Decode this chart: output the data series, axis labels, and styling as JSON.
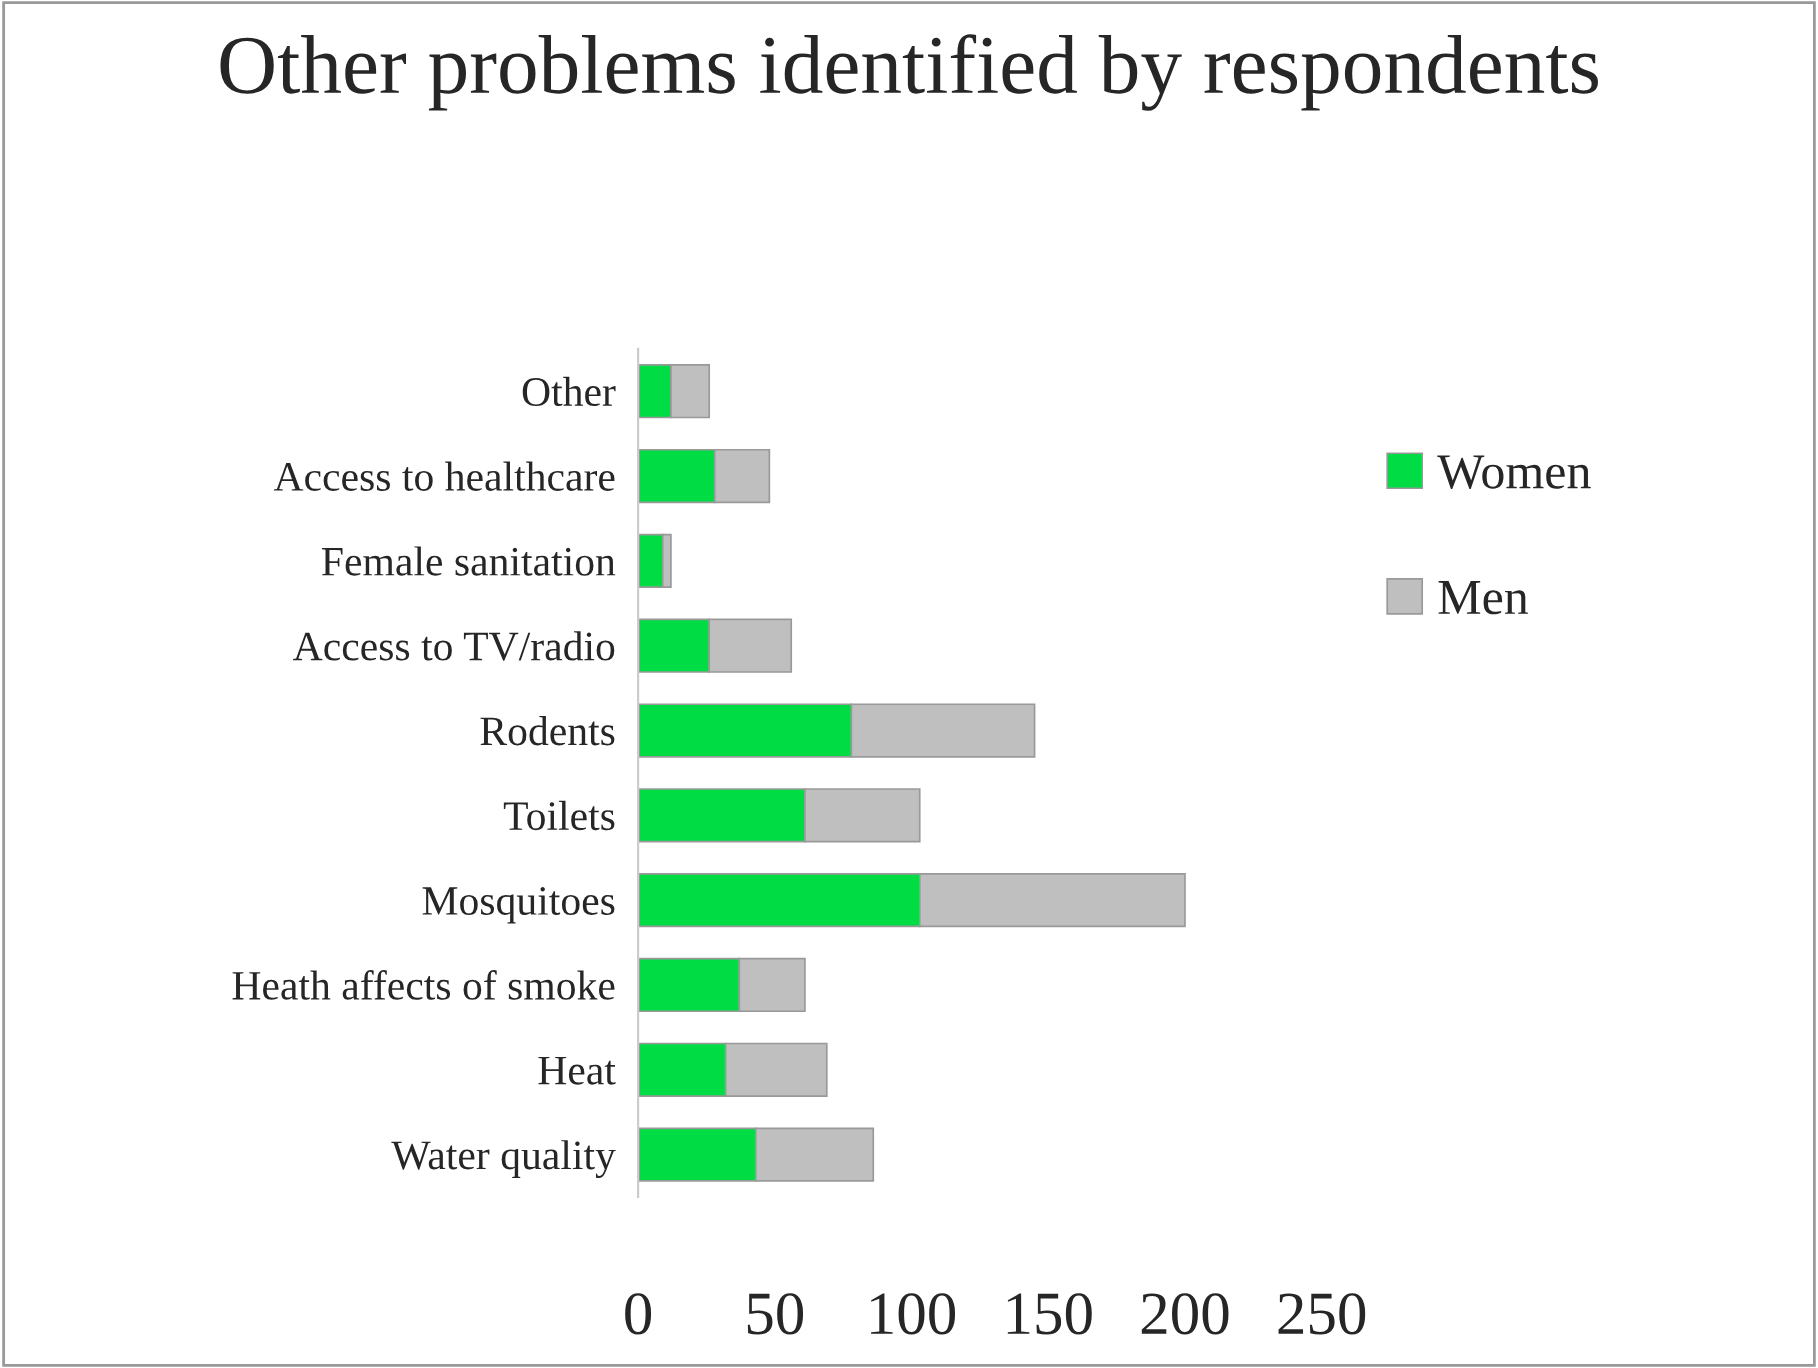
{
  "chart_data": {
    "type": "bar",
    "orientation": "horizontal",
    "stacked": true,
    "title": "Other problems identified by respondents",
    "categories": [
      "Other",
      "Access to healthcare",
      "Female sanitation",
      "Access to TV/radio",
      "Rodents",
      "Toilets",
      "Mosquitoes",
      "Heath affects of smoke",
      "Heat",
      "Water quality"
    ],
    "series": [
      {
        "name": "Women",
        "color": "#00dd44",
        "values": [
          12,
          28,
          9,
          26,
          78,
          61,
          103,
          37,
          32,
          43
        ]
      },
      {
        "name": "Men",
        "color": "#bfbfbf",
        "values": [
          14,
          20,
          3,
          30,
          67,
          42,
          97,
          24,
          37,
          43
        ]
      }
    ],
    "xlim": [
      0,
      250
    ],
    "xticks": [
      0,
      50,
      100,
      150,
      200,
      250
    ],
    "grid": false,
    "legend": "right"
  }
}
